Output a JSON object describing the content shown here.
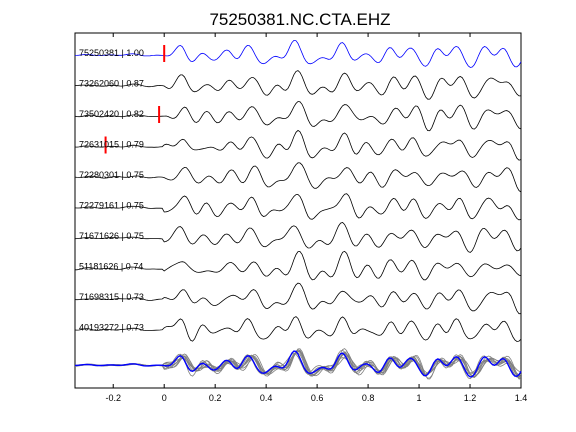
{
  "chart_data": {
    "type": "line",
    "title": "75250381.NC.CTA.EHZ",
    "xlabel": "",
    "ylabel": "",
    "xlim": [
      -0.35,
      1.4
    ],
    "xticks": [
      "-0.2",
      "0",
      "0.2",
      "0.4",
      "0.6",
      "0.8",
      "1",
      "1.2",
      "1.4"
    ],
    "xtick_values": [
      -0.2,
      0,
      0.2,
      0.4,
      0.6,
      0.8,
      1,
      1.2,
      1.4
    ],
    "grid": false,
    "traces": [
      {
        "label": "75250381 | 1.00",
        "color": "#0000ff",
        "pick": 0.0
      },
      {
        "label": "73262060 | 0.87",
        "color": "#000000",
        "pick": null
      },
      {
        "label": "73502420 | 0.82",
        "color": "#000000",
        "pick": -0.02
      },
      {
        "label": "72631015 | 0.79",
        "color": "#000000",
        "pick": -0.23
      },
      {
        "label": "72280301 | 0.75",
        "color": "#000000",
        "pick": null
      },
      {
        "label": "72279161 | 0.75",
        "color": "#000000",
        "pick": null
      },
      {
        "label": "71671626 | 0.75",
        "color": "#000000",
        "pick": null
      },
      {
        "label": "51181626 | 0.74",
        "color": "#000000",
        "pick": null
      },
      {
        "label": "71698315 | 0.73",
        "color": "#000000",
        "pick": null
      },
      {
        "label": "40193272 | 0.73",
        "color": "#000000",
        "pick": null
      }
    ],
    "stack_colors": {
      "overlay": "#808080",
      "reference": "#0000ff",
      "pick": "#ff0000"
    }
  }
}
